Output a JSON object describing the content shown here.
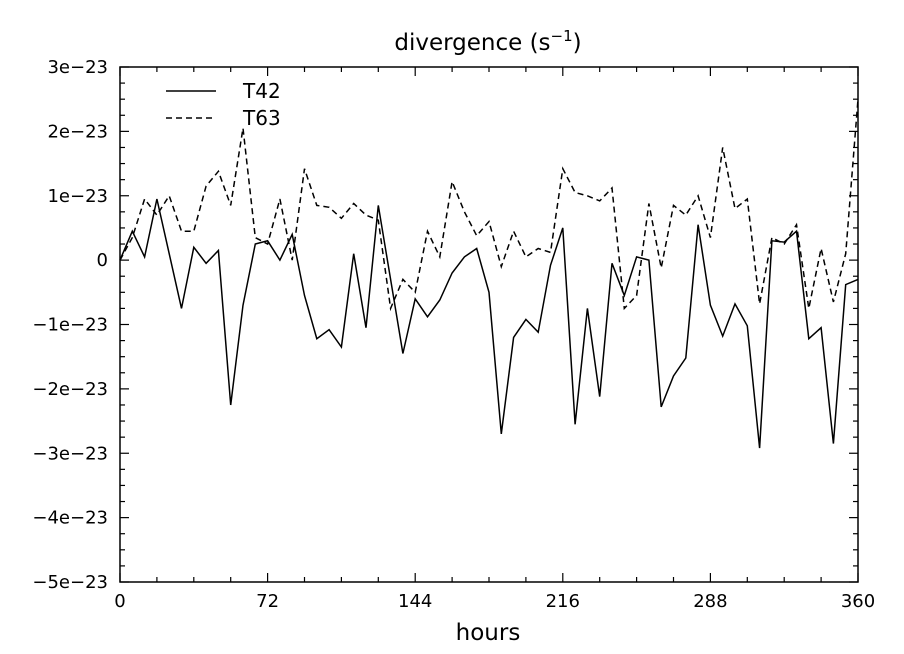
{
  "chart_data": {
    "type": "line",
    "title": "divergence (s",
    "title_superscript": "−1",
    "title_suffix": ")",
    "xlabel": "hours",
    "ylabel": "",
    "xlim": [
      0,
      360
    ],
    "ylim": [
      -5e-23,
      3e-23
    ],
    "grid": false,
    "legend_position": "top-left",
    "x_ticks": [
      0,
      72,
      144,
      216,
      288,
      360
    ],
    "x_tick_labels": [
      "0",
      "72",
      "144",
      "216",
      "288",
      "360"
    ],
    "y_ticks": [
      -5e-23,
      -4e-23,
      -3e-23,
      -2e-23,
      -1e-23,
      0,
      1e-23,
      2e-23,
      3e-23
    ],
    "y_tick_labels": [
      "−5e−23",
      "−4e−23",
      "−3e−23",
      "−2e−23",
      "−1e−23",
      "0",
      "1e−23",
      "2e−23",
      "3e−23"
    ],
    "x": [
      0,
      6,
      12,
      18,
      24,
      30,
      36,
      42,
      48,
      54,
      60,
      66,
      72,
      78,
      84,
      90,
      96,
      102,
      108,
      114,
      120,
      126,
      132,
      138,
      144,
      150,
      156,
      162,
      168,
      174,
      180,
      186,
      192,
      198,
      204,
      210,
      216,
      222,
      228,
      234,
      240,
      246,
      252,
      258,
      264,
      270,
      276,
      282,
      288,
      294,
      300,
      306,
      312,
      318,
      324,
      330,
      336,
      342,
      348,
      354,
      360
    ],
    "series": [
      {
        "name": "T42",
        "line_style": "solid",
        "color": "#000000",
        "values": [
          0.0,
          0.45,
          0.05,
          0.95,
          0.1,
          -0.75,
          0.2,
          -0.05,
          0.15,
          -2.25,
          -0.7,
          0.25,
          0.3,
          0.0,
          0.4,
          -0.55,
          -1.22,
          -1.08,
          -1.35,
          0.1,
          -1.05,
          0.85,
          -0.3,
          -1.45,
          -0.6,
          -0.88,
          -0.62,
          -0.2,
          0.05,
          0.18,
          -0.5,
          -2.7,
          -1.2,
          -0.92,
          -1.12,
          -0.08,
          0.5,
          -2.55,
          -0.75,
          -2.12,
          -0.05,
          -0.55,
          0.05,
          0.0,
          -2.28,
          -1.8,
          -1.52,
          0.55,
          -0.7,
          -1.18,
          -0.68,
          -1.02,
          -2.92,
          0.3,
          0.28,
          0.45,
          -1.22,
          -1.05,
          -2.85,
          -0.38,
          -0.3
        ]
      },
      {
        "name": "T63",
        "line_style": "dashed",
        "color": "#000000",
        "values": [
          0.0,
          0.35,
          0.95,
          0.7,
          1.0,
          0.45,
          0.45,
          1.15,
          1.38,
          0.85,
          2.05,
          0.35,
          0.25,
          0.95,
          0.0,
          1.42,
          0.85,
          0.82,
          0.65,
          0.88,
          0.7,
          0.62,
          -0.75,
          -0.3,
          -0.5,
          0.45,
          0.05,
          1.22,
          0.75,
          0.38,
          0.6,
          -0.1,
          0.45,
          0.05,
          0.18,
          0.12,
          1.42,
          1.05,
          1.0,
          0.92,
          1.12,
          -0.75,
          -0.55,
          0.88,
          -0.12,
          0.85,
          0.7,
          1.0,
          0.35,
          1.75,
          0.8,
          0.95,
          -0.68,
          0.35,
          0.25,
          0.55,
          -0.75,
          0.18,
          -0.65,
          0.1,
          2.5
        ]
      }
    ],
    "values_unit_multiplier": 1e-23
  }
}
